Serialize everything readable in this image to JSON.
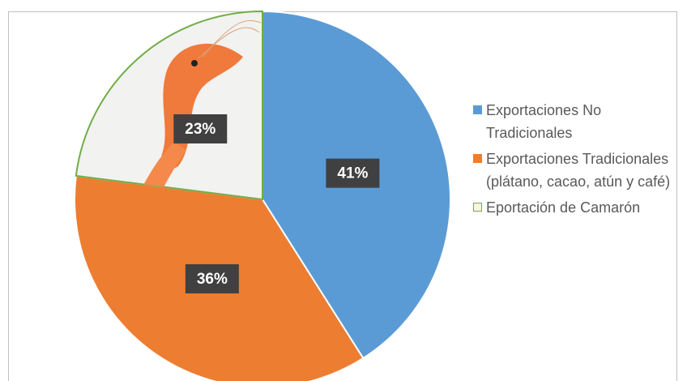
{
  "chart_data": {
    "type": "pie",
    "categories": [
      "Exportaciones No Tradicionales",
      "Exportaciones Tradicionales (plátano, cacao, atún y café)",
      "Eportación de Camarón"
    ],
    "values": [
      41,
      36,
      23
    ],
    "value_labels": [
      "41%",
      "36%",
      "23%"
    ],
    "colors": [
      "#5b9bd5",
      "#ed7d31",
      "#70ad47"
    ],
    "legend": "right"
  }
}
